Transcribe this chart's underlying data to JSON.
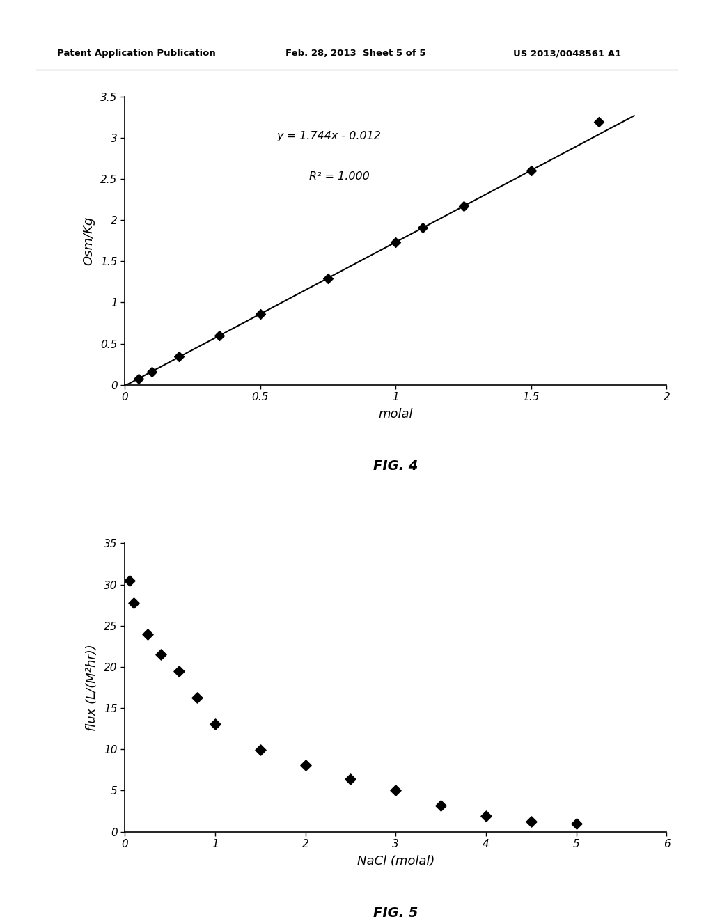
{
  "fig4": {
    "x_data": [
      0.05,
      0.1,
      0.2,
      0.35,
      0.5,
      0.75,
      1.0,
      1.1,
      1.25,
      1.5,
      1.75
    ],
    "y_data": [
      0.075,
      0.16,
      0.34,
      0.6,
      0.86,
      1.29,
      1.73,
      1.91,
      2.17,
      2.6,
      3.19
    ],
    "line_x": [
      0.0,
      1.88
    ],
    "slope": 1.744,
    "intercept": -0.012,
    "xlabel": "molal",
    "ylabel": "Osm/Kg",
    "equation": "y = 1.744x - 0.012",
    "r2": "R² = 1.000",
    "xlim": [
      0,
      2
    ],
    "ylim": [
      0,
      3.5
    ],
    "xticks": [
      0,
      0.5,
      1,
      1.5,
      2
    ],
    "yticks": [
      0,
      0.5,
      1,
      1.5,
      2,
      2.5,
      3,
      3.5
    ],
    "fig_label": "FIG. 4"
  },
  "fig5": {
    "x_data": [
      0.05,
      0.1,
      0.25,
      0.4,
      0.6,
      0.8,
      1.0,
      1.5,
      2.0,
      2.5,
      3.0,
      3.5,
      4.0,
      4.5,
      5.0
    ],
    "y_data": [
      30.5,
      27.8,
      24.0,
      21.5,
      19.5,
      16.3,
      13.1,
      9.9,
      8.1,
      6.4,
      5.0,
      3.2,
      1.9,
      1.2,
      1.0
    ],
    "xlabel": "NaCl (molal)",
    "ylabel": "flux (L/(M²hr))",
    "xlim": [
      0,
      6
    ],
    "ylim": [
      0,
      35
    ],
    "xticks": [
      0,
      1,
      2,
      3,
      4,
      5,
      6
    ],
    "yticks": [
      0,
      5,
      10,
      15,
      20,
      25,
      30,
      35
    ],
    "fig_label": "FIG. 5"
  },
  "header_left": "Patent Application Publication",
  "header_center": "Feb. 28, 2013  Sheet 5 of 5",
  "header_right": "US 2013/0048561 A1",
  "bg_color": "#ffffff",
  "text_color": "#000000",
  "marker_color": "#000000",
  "line_color": "#000000"
}
